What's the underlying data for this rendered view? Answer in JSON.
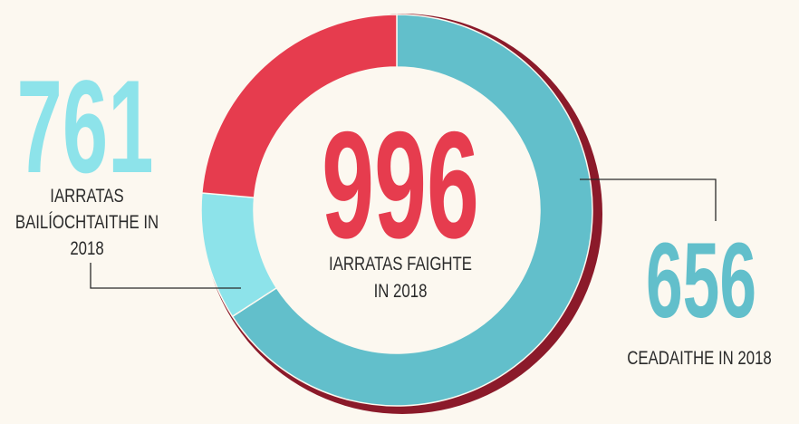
{
  "chart_data": {
    "type": "donut",
    "total": {
      "value": 996,
      "label_lines": [
        "IARRATAS FAIGHTE",
        "IN 2018"
      ],
      "color": "#e63c4e"
    },
    "callouts": [
      {
        "value": 761,
        "label_lines": [
          "IARRATAS",
          "BAILÍOCHTAITHE IN",
          "2018"
        ],
        "color": "#8de3ea"
      },
      {
        "value": 656,
        "label_lines": [
          "CEADAITHE IN 2018"
        ],
        "color": "#62bfcb"
      }
    ]
  }
}
